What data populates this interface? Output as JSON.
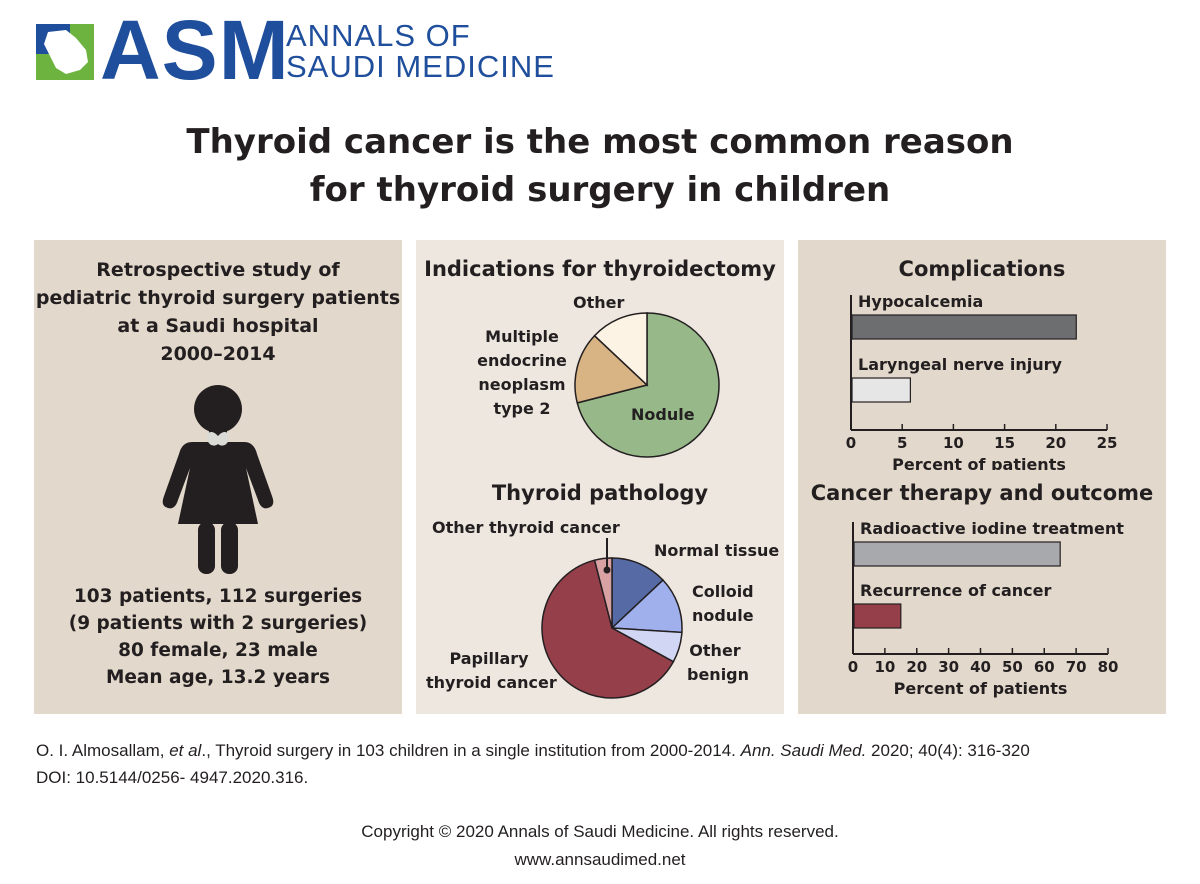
{
  "logo": {
    "acronym": "ASM",
    "name_line1": "ANNALS OF",
    "name_line2": "SAUDI MEDICINE",
    "colors": {
      "blue": "#1f4f9c",
      "green": "#6cb33f"
    }
  },
  "title": {
    "line1": "Thyroid cancer is the most common reason",
    "line2": "for thyroid surgery in children"
  },
  "study_panel": {
    "description": [
      "Retrospective study of",
      "pediatric thyroid surgery patients",
      "at a Saudi hospital",
      "2000–2014"
    ],
    "stats": [
      "103 patients, 112 surgeries",
      "(9 patients with 2 surgeries)",
      "80 female, 23 male",
      "Mean age, 13.2 years"
    ],
    "figure_icon": "child-silhouette-icon"
  },
  "chart_data": [
    {
      "type": "pie",
      "title": "Indications for thyroidectomy",
      "slices": [
        {
          "label": "Nodule",
          "value": 71,
          "color": "#97b98a"
        },
        {
          "label": "Multiple endocrine neoplasm type 2",
          "value": 16,
          "color": "#d8b485"
        },
        {
          "label": "Other",
          "value": 13,
          "color": "#fcf3e4"
        }
      ]
    },
    {
      "type": "pie",
      "title": "Thyroid pathology",
      "slices": [
        {
          "label": "Normal tissue",
          "value": 13,
          "color": "#566ba6"
        },
        {
          "label": "Colloid nodule",
          "value": 13,
          "color": "#9fb0ec"
        },
        {
          "label": "Other benign",
          "value": 7,
          "color": "#d0d6f3"
        },
        {
          "label": "Papillary thyroid cancer",
          "value": 63,
          "color": "#953f4b"
        },
        {
          "label": "Other thyroid cancer",
          "value": 4,
          "color": "#d8a2a5"
        }
      ]
    },
    {
      "type": "bar",
      "orientation": "horizontal",
      "title": "Complications",
      "categories": [
        "Hypocalcemia",
        "Laryngeal nerve injury"
      ],
      "values": [
        22,
        5.8
      ],
      "colors": [
        "#6d6e70",
        "#e6e6e6"
      ],
      "xlabel": "Percent of patients",
      "xlim": [
        0,
        25
      ],
      "xticks": [
        "0",
        "5",
        "10",
        "15",
        "20",
        "25"
      ]
    },
    {
      "type": "bar",
      "orientation": "horizontal",
      "title": "Cancer therapy and outcome",
      "categories": [
        "Radioactive iodine treatment",
        "Recurrence of cancer"
      ],
      "values": [
        65,
        15
      ],
      "colors": [
        "#a7a9ac",
        "#953f4b"
      ],
      "xlabel": "Percent of patients",
      "xlim": [
        0,
        80
      ],
      "xticks": [
        "0",
        "10",
        "20",
        "30",
        "40",
        "50",
        "60",
        "70",
        "80"
      ]
    }
  ],
  "labels": {
    "ind_other": "Other",
    "ind_men": [
      "Multiple",
      "endocrine",
      "neoplasm",
      "type 2"
    ],
    "ind_nodule": "Nodule",
    "path_other_cancer": "Other thyroid cancer",
    "path_normal": "Normal tissue",
    "path_colloid": [
      "Colloid",
      "nodule"
    ],
    "path_benign": [
      "Other",
      "benign"
    ],
    "path_papillary": [
      "Papillary",
      "thyroid cancer"
    ]
  },
  "citation": {
    "authors": "O. I. Almosallam, ",
    "etal": "et al",
    "text": "., Thyroid surgery in 103 children in a single institution from 2000-2014. ",
    "journal": "Ann. Saudi Med.",
    "ref": " 2020; 40(4): 316-320",
    "doi": "DOI: 10.5144/0256- 4947.2020.316."
  },
  "footer": {
    "copyright": "Copyright  ©  2020 Annals of Saudi Medicine.  All rights reserved.",
    "website": "www.annsaudimed.net"
  }
}
